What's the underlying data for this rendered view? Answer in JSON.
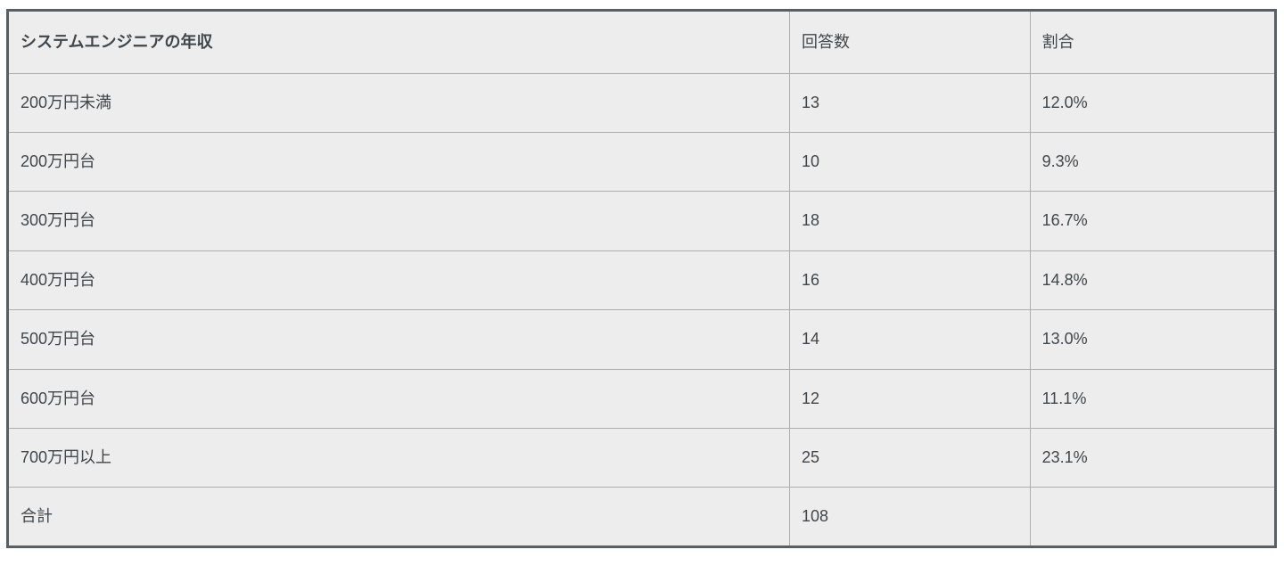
{
  "chart_data": {
    "type": "table",
    "columns": [
      "システムエンジニアの年収",
      "回答数",
      "割合"
    ],
    "rows": [
      [
        "200万円未満",
        "13",
        "12.0%"
      ],
      [
        "200万円台",
        "10",
        "9.3%"
      ],
      [
        "300万円台",
        "18",
        "16.7%"
      ],
      [
        "400万円台",
        "16",
        "14.8%"
      ],
      [
        "500万円台",
        "14",
        "13.0%"
      ],
      [
        "600万円台",
        "12",
        "11.1%"
      ],
      [
        "700万円以上",
        "25",
        "23.1%"
      ],
      [
        "合計",
        "108",
        ""
      ]
    ],
    "layout_hints": {
      "header_first_column_bold": true,
      "grid": "on",
      "total_row_label": "合計",
      "total_responses": "108"
    },
    "colors": {
      "cell_background": "#ededed",
      "outer_border": "#596065",
      "inner_border": "#aeaeae",
      "text": "#3f464c",
      "page_background": "#ffffff"
    }
  }
}
